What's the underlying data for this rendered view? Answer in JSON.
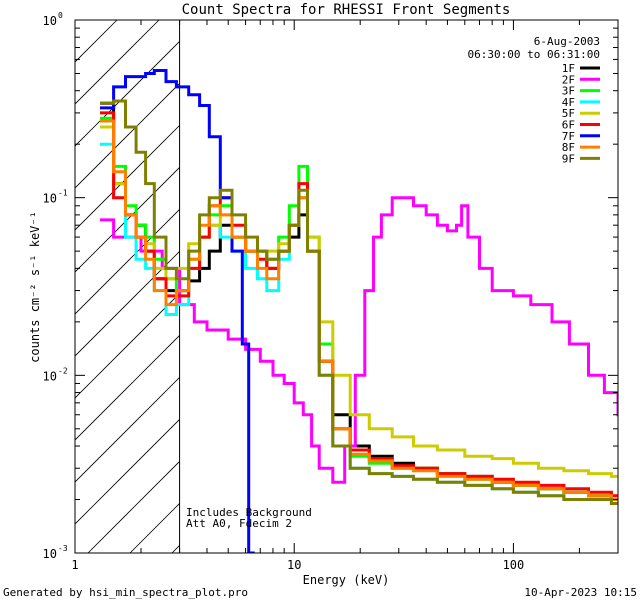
{
  "chart_data": {
    "type": "line",
    "title": "Count Spectra for RHESSI Front Segments",
    "xlabel": "Energy (keV)",
    "ylabel": "counts cm⁻² s⁻¹ keV⁻¹",
    "xscale": "log",
    "yscale": "log",
    "xlim": [
      1,
      300
    ],
    "ylim": [
      0.001,
      1
    ],
    "x_ticks": [
      {
        "value": 1,
        "label": "1"
      },
      {
        "value": 10,
        "label": "10"
      },
      {
        "value": 100,
        "label": "100"
      }
    ],
    "y_ticks": [
      {
        "value": 0.001,
        "base": "10",
        "exp": "-3"
      },
      {
        "value": 0.01,
        "base": "10",
        "exp": "-2"
      },
      {
        "value": 0.1,
        "base": "10",
        "exp": "-1"
      },
      {
        "value": 1,
        "base": "10",
        "exp": "0"
      }
    ],
    "hatched_region": [
      1,
      3
    ],
    "info": {
      "date": "6-Aug-2003",
      "time_range": "06:30:00 to 06:31:00"
    },
    "annotations": [
      "Includes Background",
      "Att A0, Fdecim 2"
    ],
    "legend_position": "top-right",
    "series": [
      {
        "name": "1F",
        "color": "#000000",
        "x": [
          1.3,
          1.5,
          1.7,
          1.9,
          2.1,
          2.3,
          2.6,
          2.9,
          3.3,
          3.7,
          4.1,
          4.6,
          5.2,
          6,
          6.8,
          7.5,
          8.5,
          9.5,
          10.5,
          11.5,
          13,
          15,
          18,
          22,
          28,
          35,
          45,
          60,
          80,
          100,
          130,
          170,
          220,
          280
        ],
        "y": [
          0.34,
          0.12,
          0.08,
          0.07,
          0.05,
          0.035,
          0.03,
          0.03,
          0.034,
          0.04,
          0.05,
          0.07,
          0.06,
          0.05,
          0.05,
          0.04,
          0.05,
          0.06,
          0.08,
          0.05,
          0.012,
          0.006,
          0.004,
          0.0035,
          0.0032,
          0.003,
          0.0028,
          0.0027,
          0.0025,
          0.0024,
          0.0023,
          0.0022,
          0.0021,
          0.002
        ]
      },
      {
        "name": "2F",
        "color": "#ff00ff",
        "x": [
          1.3,
          1.5,
          2,
          2.5,
          3,
          3.5,
          4,
          5,
          6,
          7,
          8,
          9,
          10,
          11,
          12,
          13,
          15,
          17,
          19,
          21,
          23,
          25,
          28,
          31,
          35,
          40,
          45,
          50,
          55,
          58,
          62,
          70,
          80,
          100,
          120,
          150,
          180,
          220,
          260,
          300
        ],
        "y": [
          0.075,
          0.06,
          0.05,
          0.04,
          0.025,
          0.02,
          0.018,
          0.016,
          0.014,
          0.012,
          0.01,
          0.009,
          0.007,
          0.006,
          0.004,
          0.003,
          0.0025,
          0.004,
          0.01,
          0.03,
          0.06,
          0.08,
          0.1,
          0.1,
          0.09,
          0.08,
          0.07,
          0.065,
          0.07,
          0.09,
          0.06,
          0.04,
          0.03,
          0.028,
          0.025,
          0.02,
          0.015,
          0.01,
          0.008,
          0.006
        ]
      },
      {
        "name": "3F",
        "color": "#00ff00",
        "x": [
          1.3,
          1.5,
          1.7,
          1.9,
          2.1,
          2.3,
          2.6,
          2.9,
          3.3,
          3.7,
          4.1,
          4.6,
          5.2,
          6,
          6.8,
          7.5,
          8.5,
          9.5,
          10.5,
          11.5,
          13,
          15,
          18,
          22,
          28,
          35,
          45,
          60,
          80,
          100,
          130,
          170,
          220,
          280
        ],
        "y": [
          0.28,
          0.15,
          0.09,
          0.07,
          0.06,
          0.045,
          0.035,
          0.03,
          0.045,
          0.06,
          0.08,
          0.09,
          0.06,
          0.05,
          0.05,
          0.045,
          0.06,
          0.09,
          0.15,
          0.06,
          0.015,
          0.005,
          0.0035,
          0.0032,
          0.003,
          0.003,
          0.0028,
          0.0026,
          0.0025,
          0.0024,
          0.0023,
          0.0022,
          0.0021,
          0.002
        ]
      },
      {
        "name": "4F",
        "color": "#00ffff",
        "x": [
          1.3,
          1.5,
          1.7,
          1.9,
          2.1,
          2.3,
          2.6,
          2.9,
          3.3,
          3.7,
          4.1,
          4.6,
          5.2,
          6,
          6.8,
          7.5,
          8.5,
          9.5,
          10.5,
          11.5,
          13,
          15,
          18,
          22,
          28,
          35,
          45,
          60,
          80,
          100,
          130,
          170,
          220,
          280
        ],
        "y": [
          0.2,
          0.1,
          0.06,
          0.045,
          0.04,
          0.03,
          0.022,
          0.025,
          0.04,
          0.06,
          0.07,
          0.06,
          0.05,
          0.04,
          0.035,
          0.03,
          0.045,
          0.07,
          0.1,
          0.05,
          0.01,
          0.004,
          0.003,
          0.0028,
          0.0027,
          0.0026,
          0.0025,
          0.0024,
          0.0023,
          0.0022,
          0.0021,
          0.002,
          0.002,
          0.0019
        ]
      },
      {
        "name": "5F",
        "color": "#cccc00",
        "x": [
          1.3,
          1.5,
          1.7,
          1.9,
          2.1,
          2.3,
          2.6,
          2.9,
          3.3,
          3.7,
          4.1,
          4.6,
          5.2,
          6,
          6.8,
          7.5,
          8.5,
          9.5,
          10.5,
          11.5,
          13,
          15,
          18,
          22,
          28,
          35,
          45,
          60,
          80,
          100,
          130,
          170,
          220,
          280
        ],
        "y": [
          0.25,
          0.12,
          0.08,
          0.06,
          0.055,
          0.04,
          0.035,
          0.04,
          0.055,
          0.06,
          0.07,
          0.08,
          0.06,
          0.05,
          0.05,
          0.05,
          0.055,
          0.07,
          0.1,
          0.06,
          0.02,
          0.01,
          0.006,
          0.005,
          0.0045,
          0.004,
          0.0038,
          0.0035,
          0.0034,
          0.0032,
          0.003,
          0.0029,
          0.0028,
          0.0027
        ]
      },
      {
        "name": "6F",
        "color": "#ff0000",
        "x": [
          1.3,
          1.5,
          1.7,
          1.9,
          2.1,
          2.3,
          2.6,
          2.9,
          3.3,
          3.7,
          4.1,
          4.6,
          5.2,
          6,
          6.8,
          7.5,
          8.5,
          9.5,
          10.5,
          11.5,
          13,
          15,
          18,
          22,
          28,
          35,
          45,
          60,
          80,
          100,
          130,
          170,
          220,
          280
        ],
        "y": [
          0.3,
          0.1,
          0.08,
          0.06,
          0.05,
          0.035,
          0.028,
          0.028,
          0.04,
          0.06,
          0.09,
          0.1,
          0.07,
          0.05,
          0.045,
          0.04,
          0.05,
          0.07,
          0.12,
          0.05,
          0.012,
          0.005,
          0.0038,
          0.0034,
          0.0031,
          0.003,
          0.0028,
          0.0027,
          0.0026,
          0.0025,
          0.0024,
          0.0023,
          0.0022,
          0.0021
        ]
      },
      {
        "name": "7F",
        "color": "#0000ff",
        "x": [
          1.3,
          1.5,
          1.7,
          1.9,
          2.1,
          2.3,
          2.6,
          2.9,
          3.3,
          3.7,
          4.1,
          4.6,
          5.2,
          5.8,
          6.2
        ],
        "y": [
          0.32,
          0.42,
          0.48,
          0.48,
          0.5,
          0.52,
          0.45,
          0.42,
          0.38,
          0.33,
          0.22,
          0.1,
          0.05,
          0.015,
          0.001
        ]
      },
      {
        "name": "8F",
        "color": "#ff8000",
        "x": [
          1.3,
          1.5,
          1.7,
          1.9,
          2.1,
          2.3,
          2.6,
          2.9,
          3.3,
          3.7,
          4.1,
          4.6,
          5.2,
          6,
          6.8,
          7.5,
          8.5,
          9.5,
          10.5,
          11.5,
          13,
          15,
          18,
          22,
          28,
          35,
          45,
          60,
          80,
          100,
          130,
          170,
          220,
          280
        ],
        "y": [
          0.27,
          0.14,
          0.08,
          0.06,
          0.045,
          0.03,
          0.025,
          0.03,
          0.045,
          0.07,
          0.09,
          0.08,
          0.06,
          0.05,
          0.04,
          0.035,
          0.05,
          0.07,
          0.1,
          0.05,
          0.012,
          0.005,
          0.0036,
          0.0033,
          0.003,
          0.0029,
          0.0027,
          0.0026,
          0.0025,
          0.0024,
          0.0023,
          0.0022,
          0.0021,
          0.002
        ]
      },
      {
        "name": "9F",
        "color": "#808000",
        "x": [
          1.3,
          1.5,
          1.7,
          1.9,
          2.1,
          2.3,
          2.6,
          2.9,
          3.3,
          3.7,
          4.1,
          4.6,
          5.2,
          6,
          6.8,
          7.5,
          8.5,
          9.5,
          10.5,
          11.5,
          13,
          15,
          18,
          22,
          28,
          35,
          45,
          60,
          80,
          100,
          130,
          170,
          220,
          280
        ],
        "y": [
          0.34,
          0.35,
          0.25,
          0.18,
          0.12,
          0.06,
          0.04,
          0.035,
          0.05,
          0.08,
          0.1,
          0.11,
          0.08,
          0.06,
          0.05,
          0.045,
          0.05,
          0.07,
          0.11,
          0.05,
          0.01,
          0.004,
          0.003,
          0.0028,
          0.0027,
          0.0026,
          0.0025,
          0.0024,
          0.0023,
          0.0022,
          0.0021,
          0.002,
          0.002,
          0.0019
        ]
      }
    ]
  },
  "footer": {
    "left": "Generated by hsi_min_spectra_plot.pro",
    "right": "10-Apr-2023 10:15"
  }
}
